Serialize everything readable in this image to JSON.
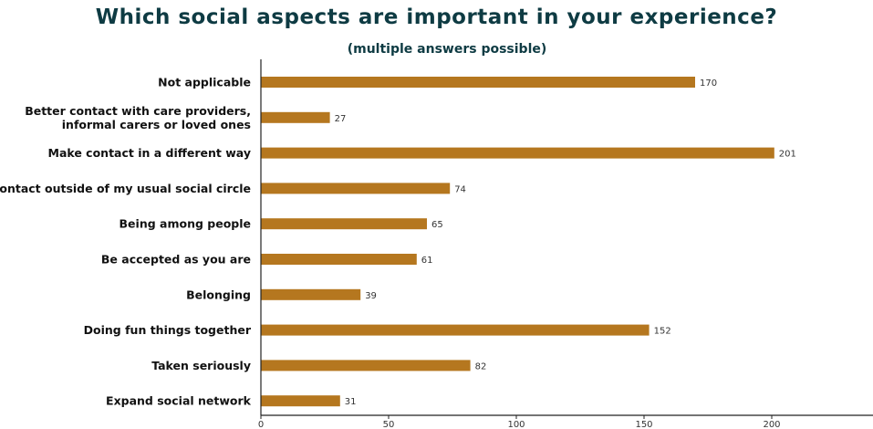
{
  "chart_data": {
    "type": "bar",
    "orientation": "horizontal",
    "title": "Which social aspects are important in your experience?",
    "subtitle": "(multiple answers possible)",
    "categories": [
      [
        "Not applicable"
      ],
      [
        "Better contact with care providers,",
        "informal carers or loved ones"
      ],
      [
        "Make contact in a different way"
      ],
      [
        "Contact outside of my usual social circle"
      ],
      [
        "Being among people"
      ],
      [
        "Be accepted as you are"
      ],
      [
        "Belonging"
      ],
      [
        "Doing fun things together"
      ],
      [
        "Taken seriously"
      ],
      [
        "Expand social network"
      ]
    ],
    "values": [
      170,
      27,
      201,
      74,
      65,
      61,
      39,
      152,
      82,
      31
    ],
    "xlim": [
      0,
      240
    ],
    "xticks": [
      0,
      50,
      100,
      150,
      200
    ],
    "bar_color": "#b5771f",
    "axis_color": "#222222",
    "grid": false,
    "legend": "none"
  }
}
